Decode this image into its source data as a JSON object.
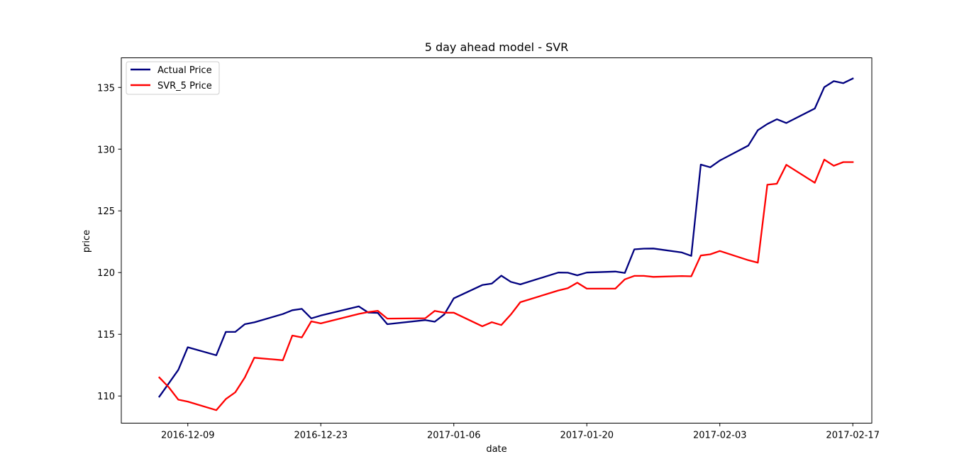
{
  "chart_data": {
    "type": "line",
    "title": "5 day ahead model - SVR",
    "xlabel": "date",
    "ylabel": "price",
    "x_axis": "date",
    "xlim": [
      "2016-12-02",
      "2017-02-19"
    ],
    "ylim": [
      107.8,
      137.4
    ],
    "x_ticks": [
      "2016-12-09",
      "2016-12-23",
      "2017-01-06",
      "2017-01-20",
      "2017-02-03",
      "2017-02-17"
    ],
    "y_ticks": [
      110,
      115,
      120,
      125,
      130,
      135
    ],
    "grid": false,
    "legend_position": "top-left",
    "dates": [
      "2016-12-06",
      "2016-12-07",
      "2016-12-08",
      "2016-12-09",
      "2016-12-12",
      "2016-12-13",
      "2016-12-14",
      "2016-12-15",
      "2016-12-16",
      "2016-12-19",
      "2016-12-20",
      "2016-12-21",
      "2016-12-22",
      "2016-12-23",
      "2016-12-27",
      "2016-12-28",
      "2016-12-29",
      "2016-12-30",
      "2017-01-03",
      "2017-01-04",
      "2017-01-05",
      "2017-01-06",
      "2017-01-09",
      "2017-01-10",
      "2017-01-11",
      "2017-01-12",
      "2017-01-13",
      "2017-01-17",
      "2017-01-18",
      "2017-01-19",
      "2017-01-20",
      "2017-01-23",
      "2017-01-24",
      "2017-01-25",
      "2017-01-26",
      "2017-01-27",
      "2017-01-30",
      "2017-01-31",
      "2017-02-01",
      "2017-02-02",
      "2017-02-03",
      "2017-02-06",
      "2017-02-07",
      "2017-02-08",
      "2017-02-09",
      "2017-02-10",
      "2017-02-13",
      "2017-02-14",
      "2017-02-15",
      "2017-02-16",
      "2017-02-17"
    ],
    "series": [
      {
        "name": "Actual Price",
        "color": "#00007f",
        "values": [
          109.95,
          111.03,
          112.12,
          113.95,
          113.3,
          115.19,
          115.19,
          115.82,
          115.97,
          116.64,
          116.95,
          117.06,
          116.29,
          116.52,
          117.26,
          116.76,
          116.73,
          115.82,
          116.15,
          116.02,
          116.61,
          117.91,
          118.99,
          119.11,
          119.75,
          119.25,
          119.04,
          120.0,
          119.99,
          119.78,
          120.0,
          120.08,
          119.97,
          121.88,
          121.94,
          121.95,
          121.63,
          121.35,
          128.75,
          128.53,
          129.08,
          130.29,
          131.53,
          132.04,
          132.42,
          132.12,
          133.29,
          135.02,
          135.51,
          135.35,
          135.72
        ]
      },
      {
        "name": "SVR_5 Price",
        "color": "#ff0000",
        "values": [
          111.5,
          110.7,
          109.7,
          109.55,
          108.85,
          109.75,
          110.3,
          111.5,
          113.1,
          112.9,
          114.9,
          114.75,
          116.05,
          115.88,
          116.65,
          116.8,
          116.9,
          116.27,
          116.3,
          116.9,
          116.75,
          116.75,
          115.65,
          115.98,
          115.75,
          116.6,
          117.6,
          118.55,
          118.73,
          119.18,
          118.7,
          118.7,
          119.45,
          119.73,
          119.73,
          119.65,
          119.72,
          119.7,
          121.38,
          121.48,
          121.75,
          121.0,
          120.8,
          127.12,
          127.2,
          128.73,
          127.28,
          129.15,
          128.65,
          128.95,
          128.95
        ]
      }
    ]
  }
}
